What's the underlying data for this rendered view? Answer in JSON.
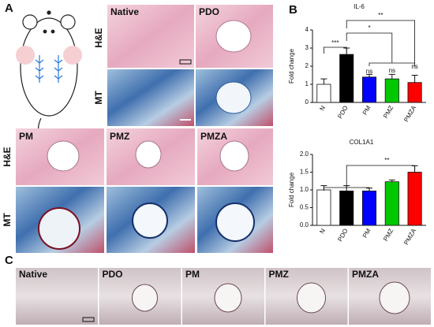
{
  "panel_a": {
    "label": "A",
    "top_columns": [
      "Native",
      "PDO"
    ],
    "top_rows": [
      "H&E",
      "MT"
    ],
    "bottom_columns": [
      "PM",
      "PMZ",
      "PMZA"
    ],
    "bottom_rows": [
      "H&E",
      "MT"
    ]
  },
  "panel_b": {
    "label": "B"
  },
  "panel_c": {
    "label": "C",
    "columns": [
      "Native",
      "PDO",
      "PM",
      "PMZ",
      "PMZA"
    ]
  },
  "chart_data": [
    {
      "type": "bar",
      "title": "IL-6",
      "y_label": "Fold change",
      "categories": [
        "N",
        "PDO",
        "PM",
        "PMZ",
        "PMZA"
      ],
      "values": [
        1.0,
        2.65,
        1.4,
        1.3,
        1.1
      ],
      "errors": [
        0.3,
        0.35,
        0.15,
        0.25,
        0.4
      ],
      "colors": [
        "#ffffff",
        "#000000",
        "#0000ff",
        "#00c800",
        "#ff0000"
      ],
      "ylim": [
        0,
        4
      ],
      "yticks": [
        0,
        1,
        2,
        3,
        4
      ],
      "annotations": [
        "***",
        "*",
        "**",
        "ns",
        "ns",
        "ns"
      ]
    },
    {
      "type": "bar",
      "title": "COL1A1",
      "y_label": "Fold change",
      "categories": [
        "N",
        "PDO",
        "PM",
        "PMZ",
        "PMZA"
      ],
      "values": [
        1.0,
        0.97,
        0.97,
        1.23,
        1.5
      ],
      "errors": [
        0.12,
        0.15,
        0.08,
        0.05,
        0.18
      ],
      "colors": [
        "#ffffff",
        "#000000",
        "#0000ff",
        "#00c800",
        "#ff0000"
      ],
      "ylim": [
        0,
        2
      ],
      "yticks": [
        {
          "value": 0,
          "label": "0.0"
        },
        {
          "value": 0.5,
          "label": "0.5"
        },
        {
          "value": 1,
          "label": "1.0"
        },
        {
          "value": 1.5,
          "label": "1.5"
        },
        {
          "value": 2,
          "label": "2.0"
        }
      ],
      "annotations": [
        "**"
      ]
    }
  ]
}
